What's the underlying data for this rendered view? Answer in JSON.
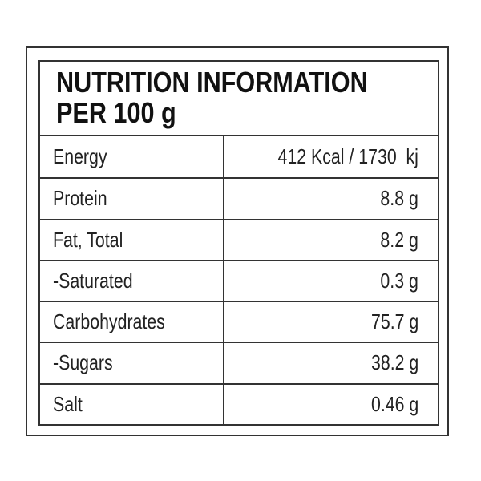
{
  "header": {
    "lines": [
      "NUTRITION INFORMATION",
      "PER 100 g"
    ]
  },
  "table": {
    "rows": [
      [
        "Energy",
        "412 Kcal / 1730  kj"
      ],
      [
        "Protein",
        "8.8 g"
      ],
      [
        "Fat, Total",
        "8.2 g"
      ],
      [
        "-Saturated",
        "0.3 g"
      ],
      [
        "Carbohydrates",
        "75.7 g"
      ],
      [
        "-Sugars",
        "38.2 g"
      ],
      [
        "Salt",
        "0.46 g"
      ]
    ]
  }
}
